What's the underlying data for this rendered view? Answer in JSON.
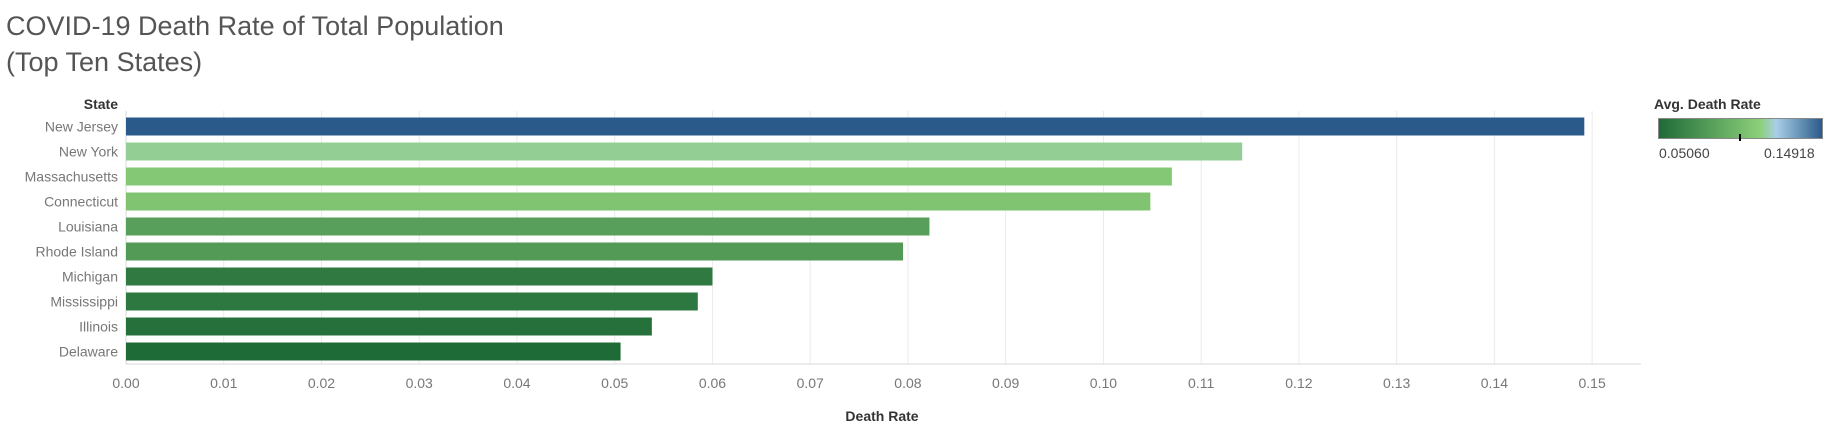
{
  "chart_data": {
    "type": "bar",
    "orientation": "horizontal",
    "title": "COVID-19 Death Rate of Total Population\n (Top Ten States)",
    "ylabel": "State",
    "xlabel": "Death Rate",
    "categories": [
      "New Jersey",
      "New York",
      "Massachusetts",
      "Connecticut",
      "Louisiana",
      "Rhode Island",
      "Michigan",
      "Mississippi",
      "Illinois",
      "Delaware"
    ],
    "values": [
      0.1492,
      0.1142,
      0.107,
      0.1048,
      0.0822,
      0.0795,
      0.06,
      0.0585,
      0.0538,
      0.0506
    ],
    "xlim": [
      0,
      0.155
    ],
    "xticks": [
      "0.00",
      "0.01",
      "0.02",
      "0.03",
      "0.04",
      "0.05",
      "0.06",
      "0.07",
      "0.08",
      "0.09",
      "0.10",
      "0.11",
      "0.12",
      "0.13",
      "0.14",
      "0.15"
    ],
    "grid": "vertical",
    "legend": {
      "title": "Avg. Death Rate",
      "min_label": "0.05060",
      "max_label": "0.14918",
      "placement": "top-right",
      "marker_value": 0.0994
    },
    "colors": {
      "low": "#1f6b37",
      "mid_green": "#8ccf7a",
      "mid_blue": "#a8cfe6",
      "high": "#2a5a8a"
    }
  }
}
